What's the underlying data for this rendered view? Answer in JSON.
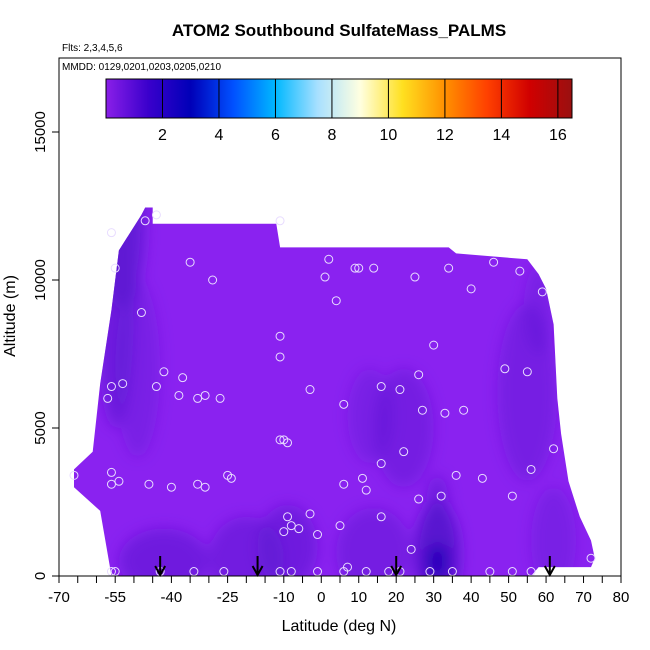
{
  "chart_data": {
    "type": "heatmap",
    "title": "ATOM2 Southbound SulfateMass_PALMS",
    "subtitle_flights": "Flts: 2,3,4,5,6",
    "subtitle_dates": "MMDD: 0129,0201,0203,0205,0210",
    "xlabel": "Latitude (deg N)",
    "ylabel": "Altitude (m)",
    "xlim": [
      -70,
      80
    ],
    "ylim": [
      0,
      17500
    ],
    "x_ticks": [
      -70,
      -55,
      -40,
      -25,
      -10,
      0,
      10,
      20,
      30,
      40,
      50,
      60,
      70,
      80
    ],
    "x_ticks_minor": [
      -65,
      -60,
      -50,
      -45,
      -35,
      -30,
      -20,
      -15,
      -5,
      5,
      15,
      25,
      35,
      45,
      55,
      65,
      75
    ],
    "y_ticks": [
      0,
      5000,
      10000,
      15000
    ],
    "colorbar": {
      "min": 0,
      "max": 16.5,
      "ticks": [
        2,
        4,
        6,
        8,
        10,
        12,
        14,
        16
      ],
      "colors": [
        "#8a1fe8",
        "#3a00cc",
        "#0000b8",
        "#0050ff",
        "#00b8ff",
        "#a8e0ff",
        "#ffffe0",
        "#ffe020",
        "#ff9000",
        "#ff4000",
        "#d00000",
        "#9a1010"
      ]
    },
    "field_color": "#8a22f0",
    "dark_color": "#5a18d0",
    "arrows_lat": [
      -43,
      -17,
      20,
      61
    ],
    "points": [
      [
        -56,
        11600
      ],
      [
        -55,
        10400
      ],
      [
        -44,
        12200
      ],
      [
        -47,
        12000
      ],
      [
        -35,
        10600
      ],
      [
        -29,
        10000
      ],
      [
        -48,
        8900
      ],
      [
        -11,
        12000
      ],
      [
        -11,
        8100
      ],
      [
        -11,
        7400
      ],
      [
        -11,
        4600
      ],
      [
        -10,
        4600
      ],
      [
        -9,
        4500
      ],
      [
        2,
        10700
      ],
      [
        1,
        10100
      ],
      [
        4,
        9300
      ],
      [
        9,
        10400
      ],
      [
        10,
        10400
      ],
      [
        14,
        10400
      ],
      [
        25,
        10100
      ],
      [
        34,
        10400
      ],
      [
        40,
        9700
      ],
      [
        46,
        10600
      ],
      [
        53,
        10300
      ],
      [
        59,
        9600
      ],
      [
        -42,
        6900
      ],
      [
        -37,
        6700
      ],
      [
        -44,
        6400
      ],
      [
        -53,
        6500
      ],
      [
        -57,
        6000
      ],
      [
        -56,
        6400
      ],
      [
        -38,
        6100
      ],
      [
        -33,
        6000
      ],
      [
        -31,
        6100
      ],
      [
        -27,
        6000
      ],
      [
        -3,
        6300
      ],
      [
        6,
        5800
      ],
      [
        16,
        6400
      ],
      [
        21,
        6300
      ],
      [
        26,
        6800
      ],
      [
        30,
        7800
      ],
      [
        27,
        5600
      ],
      [
        33,
        5500
      ],
      [
        38,
        5600
      ],
      [
        49,
        7000
      ],
      [
        55,
        6900
      ],
      [
        -56,
        3100
      ],
      [
        -56,
        3500
      ],
      [
        -54,
        3200
      ],
      [
        -46,
        3100
      ],
      [
        -40,
        3000
      ],
      [
        -33,
        3100
      ],
      [
        -31,
        3000
      ],
      [
        -25,
        3400
      ],
      [
        -24,
        3300
      ],
      [
        6,
        3100
      ],
      [
        11,
        3300
      ],
      [
        12,
        2900
      ],
      [
        16,
        3800
      ],
      [
        22,
        4200
      ],
      [
        26,
        2600
      ],
      [
        32,
        2700
      ],
      [
        36,
        3400
      ],
      [
        43,
        3300
      ],
      [
        51,
        2700
      ],
      [
        56,
        3600
      ],
      [
        62,
        4300
      ],
      [
        -66,
        3400
      ],
      [
        -9,
        2000
      ],
      [
        -8,
        1700
      ],
      [
        -10,
        1500
      ],
      [
        -6,
        1600
      ],
      [
        -3,
        2100
      ],
      [
        -1,
        1400
      ],
      [
        5,
        1700
      ],
      [
        16,
        2000
      ],
      [
        24,
        900
      ],
      [
        -56,
        150
      ],
      [
        -55,
        150
      ],
      [
        -43,
        150
      ],
      [
        -34,
        150
      ],
      [
        -26,
        150
      ],
      [
        -11,
        150
      ],
      [
        -8,
        150
      ],
      [
        -1,
        150
      ],
      [
        6,
        150
      ],
      [
        7,
        300
      ],
      [
        12,
        150
      ],
      [
        18,
        150
      ],
      [
        21,
        150
      ],
      [
        29,
        150
      ],
      [
        35,
        150
      ],
      [
        45,
        150
      ],
      [
        51,
        150
      ],
      [
        56,
        150
      ],
      [
        72,
        600
      ]
    ]
  }
}
